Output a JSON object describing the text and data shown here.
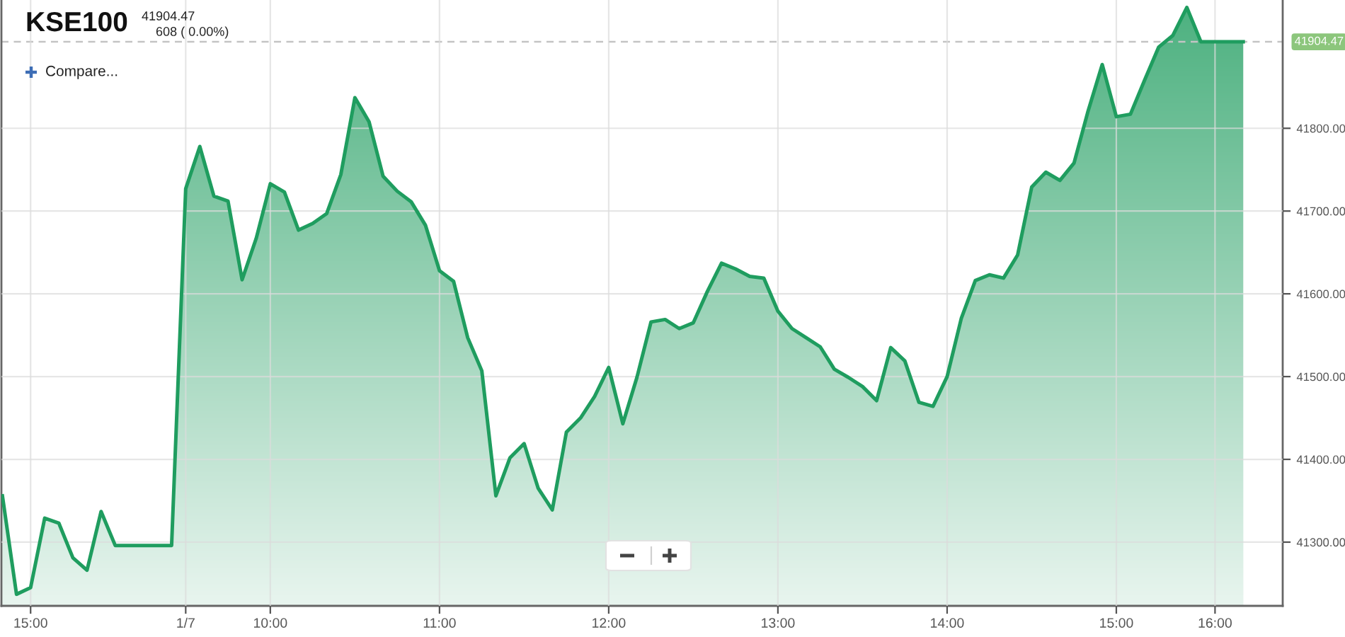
{
  "chart_data": {
    "type": "area",
    "title": "KSE100",
    "subtitle": "41904.47",
    "annotations": [
      "608 ( 0.00%)",
      "Compare..."
    ],
    "categories": [
      null,
      null,
      "15:00",
      null,
      null,
      null,
      null,
      null,
      null,
      null,
      null,
      null,
      null,
      "1/7",
      null,
      null,
      null,
      null,
      null,
      "10:00",
      null,
      null,
      null,
      null,
      null,
      null,
      null,
      null,
      null,
      null,
      null,
      "11:00",
      null,
      null,
      null,
      null,
      null,
      null,
      null,
      null,
      null,
      null,
      null,
      "12:00",
      null,
      null,
      null,
      null,
      null,
      null,
      null,
      null,
      null,
      null,
      null,
      "13:00",
      null,
      null,
      null,
      null,
      null,
      null,
      null,
      null,
      null,
      null,
      null,
      "14:00",
      null,
      null,
      null,
      null,
      null,
      null,
      null,
      null,
      null,
      null,
      null,
      "15:00",
      null,
      null,
      null,
      null,
      null,
      null,
      "16:00",
      null,
      null
    ],
    "values": [
      41356,
      41237,
      41245,
      41329,
      41323,
      41281,
      41266,
      41337,
      41296,
      41296,
      41296,
      41296,
      41296,
      41727,
      41778,
      41718,
      41712,
      41617,
      41667,
      41733,
      41723,
      41677,
      41685,
      41697,
      41744,
      41837,
      41808,
      41742,
      41724,
      41711,
      41683,
      41628,
      41615,
      41547,
      41507,
      41356,
      41402,
      41419,
      41365,
      41339,
      41433,
      41450,
      41476,
      41511,
      41443,
      41499,
      41566,
      41569,
      41558,
      41565,
      41603,
      41637,
      41630,
      41621,
      41619,
      41579,
      41558,
      41547,
      41536,
      41509,
      41499,
      41488,
      41471,
      41535,
      41519,
      41469,
      41464,
      41500,
      41570,
      41616,
      41623,
      41619,
      41647,
      41729,
      41747,
      41737,
      41758,
      41821,
      41877,
      41814,
      41817,
      41858,
      41898,
      41912,
      41946,
      41904.47,
      41904.47,
      41904.47,
      41904.47
    ],
    "color": "#1f9d5f",
    "ylim": [
      41223,
      41955
    ],
    "yticks": [
      {
        "value": 41300,
        "label": "41300.00"
      },
      {
        "value": 41400,
        "label": "41400.00"
      },
      {
        "value": 41500,
        "label": "41500.00"
      },
      {
        "value": 41600,
        "label": "41600.00"
      },
      {
        "value": 41700,
        "label": "41700.00"
      },
      {
        "value": 41800,
        "label": "41800.00"
      }
    ],
    "ref_lines": [
      {
        "axis": "y",
        "value": 41904.47,
        "label": "41904.47",
        "color": "#c4c4c4",
        "line_style": "dashed"
      }
    ],
    "grid": true
  }
}
